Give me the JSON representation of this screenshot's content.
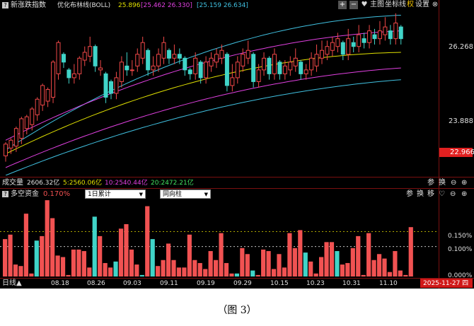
{
  "header": {
    "indicator_name": "新涨跌指数",
    "overlay_name": "优化布林线(BOLL)",
    "boll_mid": "25.896",
    "boll_band1": "[25.462 26.330]",
    "boll_band2": "[25.159 26.634]",
    "buttons": [
      "主图",
      "坐标线",
      "权",
      "设置"
    ],
    "colors": {
      "mid": "#e0e000",
      "band1": "#e040e0",
      "band2": "#40c0e0"
    }
  },
  "price_axis": {
    "ticks": [
      "26.268",
      "23.888"
    ],
    "last_price": "22.966"
  },
  "volume_bar": {
    "label": "成交量",
    "total": "2606.32亿",
    "ma5": "5:2560.06亿",
    "ma10": "10:2540.44亿",
    "ma20": "20:2472.21亿",
    "buttons": [
      "参",
      "换",
      "⊖",
      "⊕"
    ]
  },
  "fund_panel": {
    "title": "多空资金",
    "value": "0.170%",
    "dropdown1": "1日累计",
    "dropdown2": "同向柱",
    "buttons": [
      "参",
      "换",
      "移",
      "♡",
      "⊖",
      "⊕"
    ],
    "axis": [
      "0.150%",
      "0.100%",
      "0.000%"
    ],
    "bars": [
      0.125,
      0.14,
      0.04,
      0.035,
      0.21,
      0.01,
      0.12,
      0.135,
      0.255,
      0.195,
      0.07,
      0.065,
      0.005,
      0.09,
      0.09,
      0.085,
      0.03,
      0.2,
      0.135,
      0.045,
      0.03,
      0.05,
      0.16,
      0.175,
      0.09,
      0.04,
      0.005,
      0.235,
      0.125,
      0.035,
      0.055,
      0.11,
      0.055,
      0.03,
      0.03,
      0.14,
      0.055,
      0.045,
      0.025,
      0.085,
      0.055,
      0.145,
      0.045,
      0.01,
      0.01,
      0.095,
      0.075,
      0.02,
      0.005,
      0.09,
      0.085,
      0.025,
      0.075,
      0.03,
      0.145,
      0.095,
      0.155,
      0.08,
      0.05,
      0.01,
      0.065,
      0.115,
      0.115,
      0.085,
      0.04,
      0.045,
      0.095,
      0.135,
      0.005,
      0.145,
      0.055,
      0.075,
      0.06,
      0.015,
      0.085,
      0.02,
      0.005,
      0.165
    ],
    "colors": {
      "up": "#f15252",
      "down": "#40d4c8"
    }
  },
  "xaxis": {
    "period": "日线▲",
    "dates": [
      "08.18",
      "08.26",
      "09.03",
      "09.11",
      "09.19",
      "09.29",
      "10.15",
      "10.23",
      "10.31",
      "11.10"
    ],
    "current_date": "2025-11-27 四"
  },
  "candles": [
    [
      23.3,
      23.6,
      23.5
    ],
    [
      23.5,
      23.7,
      23.6
    ],
    [
      23.55,
      24.0,
      23.8
    ],
    [
      23.75,
      24.25,
      24.05
    ],
    [
      24.0,
      24.3,
      24.15
    ],
    [
      24.1,
      24.5,
      24.4
    ],
    [
      24.35,
      24.75,
      24.65
    ],
    [
      24.6,
      25.1,
      24.9
    ],
    [
      24.7,
      25.0,
      24.8
    ],
    [
      24.8,
      25.7,
      25.6
    ],
    [
      25.4,
      26.2,
      26.0
    ],
    [
      25.9,
      25.7,
      25.6
    ],
    [
      25.5,
      25.3,
      25.2
    ],
    [
      25.3,
      25.4,
      25.6
    ],
    [
      25.4,
      25.8,
      25.7
    ],
    [
      25.75,
      25.95,
      26.05
    ],
    [
      25.85,
      26.1,
      26.3
    ],
    [
      26.1,
      25.6,
      25.5
    ],
    [
      25.5,
      25.55,
      25.7
    ],
    [
      25.4,
      24.8,
      24.6
    ],
    [
      25.2,
      24.9,
      24.8
    ],
    [
      24.9,
      25.3,
      25.4
    ],
    [
      25.2,
      25.7,
      25.8
    ],
    [
      25.6,
      25.5,
      25.9
    ],
    [
      25.5,
      25.5,
      25.7
    ],
    [
      25.6,
      25.9,
      26.0
    ],
    [
      25.8,
      26.2,
      26.3
    ],
    [
      26.0,
      25.5,
      25.4
    ],
    [
      25.5,
      25.6,
      25.8
    ],
    [
      25.6,
      25.9,
      26.0
    ],
    [
      25.8,
      26.2,
      26.3
    ],
    [
      26.0,
      25.8,
      25.7
    ],
    [
      25.8,
      25.9,
      26.1
    ],
    [
      25.9,
      25.8,
      26.0
    ],
    [
      25.8,
      25.5,
      25.4
    ],
    [
      25.5,
      25.4,
      25.3
    ],
    [
      25.4,
      25.8,
      25.9
    ],
    [
      25.7,
      25.3,
      25.2
    ],
    [
      25.3,
      25.7,
      25.8
    ],
    [
      25.6,
      25.8,
      25.9
    ],
    [
      25.7,
      25.9,
      26.0
    ],
    [
      25.8,
      26.0,
      26.1
    ],
    [
      25.9,
      25.1,
      25.0
    ],
    [
      25.1,
      25.3,
      25.6
    ],
    [
      25.3,
      25.7,
      25.8
    ],
    [
      25.6,
      25.9,
      26.0
    ],
    [
      25.8,
      26.0,
      26.2
    ],
    [
      25.9,
      25.2,
      25.1
    ],
    [
      25.2,
      25.5,
      25.6
    ],
    [
      25.5,
      25.8,
      25.9
    ],
    [
      25.8,
      25.4,
      25.3
    ],
    [
      25.4,
      25.9,
      26.0
    ],
    [
      25.7,
      25.4,
      25.3
    ],
    [
      25.4,
      25.6,
      25.7
    ],
    [
      25.5,
      25.7,
      25.8
    ],
    [
      25.6,
      25.8,
      26.0
    ],
    [
      25.7,
      25.4,
      25.3
    ],
    [
      25.4,
      25.5,
      25.6
    ],
    [
      25.5,
      25.8,
      25.9
    ],
    [
      25.6,
      25.9,
      26.1
    ],
    [
      25.8,
      26.0,
      26.2
    ],
    [
      25.9,
      26.1,
      26.2
    ],
    [
      26.0,
      26.2,
      26.3
    ],
    [
      26.1,
      26.3,
      26.4
    ],
    [
      26.2,
      25.9,
      25.8
    ],
    [
      25.9,
      26.3,
      26.5
    ],
    [
      26.2,
      26.1,
      26.3
    ],
    [
      26.1,
      26.4,
      26.6
    ],
    [
      26.3,
      26.2,
      26.4
    ],
    [
      26.2,
      26.5,
      26.6
    ],
    [
      26.4,
      26.3,
      26.5
    ],
    [
      26.3,
      26.5,
      26.7
    ],
    [
      26.4,
      26.6,
      26.8
    ],
    [
      26.5,
      26.3,
      26.6
    ],
    [
      26.3,
      26.7,
      26.9
    ],
    [
      26.6,
      26.3,
      26.2
    ]
  ],
  "caption": "（图 3）"
}
